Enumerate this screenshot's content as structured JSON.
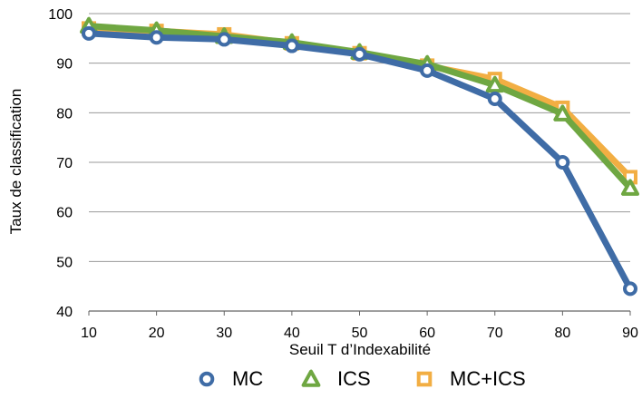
{
  "chart_data": {
    "type": "line",
    "title": "",
    "xlabel": "Seuil T d’Indexabilité",
    "ylabel": "Taux de classification",
    "x": [
      10,
      20,
      30,
      40,
      50,
      60,
      70,
      80,
      90
    ],
    "ylim": [
      40,
      100
    ],
    "yticks": [
      40,
      50,
      60,
      70,
      80,
      90,
      100
    ],
    "grid": true,
    "legend_position": "bottom",
    "series": [
      {
        "name": "MC+ICS",
        "color": "#F2AE43",
        "marker": "square",
        "values": [
          97,
          96.5,
          95.8,
          94,
          92,
          89.5,
          86.8,
          81,
          67
        ]
      },
      {
        "name": "ICS",
        "color": "#6FA742",
        "marker": "triangle",
        "values": [
          97.5,
          96.6,
          95.4,
          94.2,
          92.2,
          89.8,
          85.6,
          79.8,
          64.8
        ]
      },
      {
        "name": "MC",
        "color": "#3F6CA6",
        "marker": "circle",
        "values": [
          96,
          95.2,
          94.8,
          93.5,
          91.8,
          88.5,
          82.8,
          70,
          44.5
        ]
      }
    ],
    "legend_order": [
      "MC",
      "ICS",
      "MC+ICS"
    ]
  }
}
